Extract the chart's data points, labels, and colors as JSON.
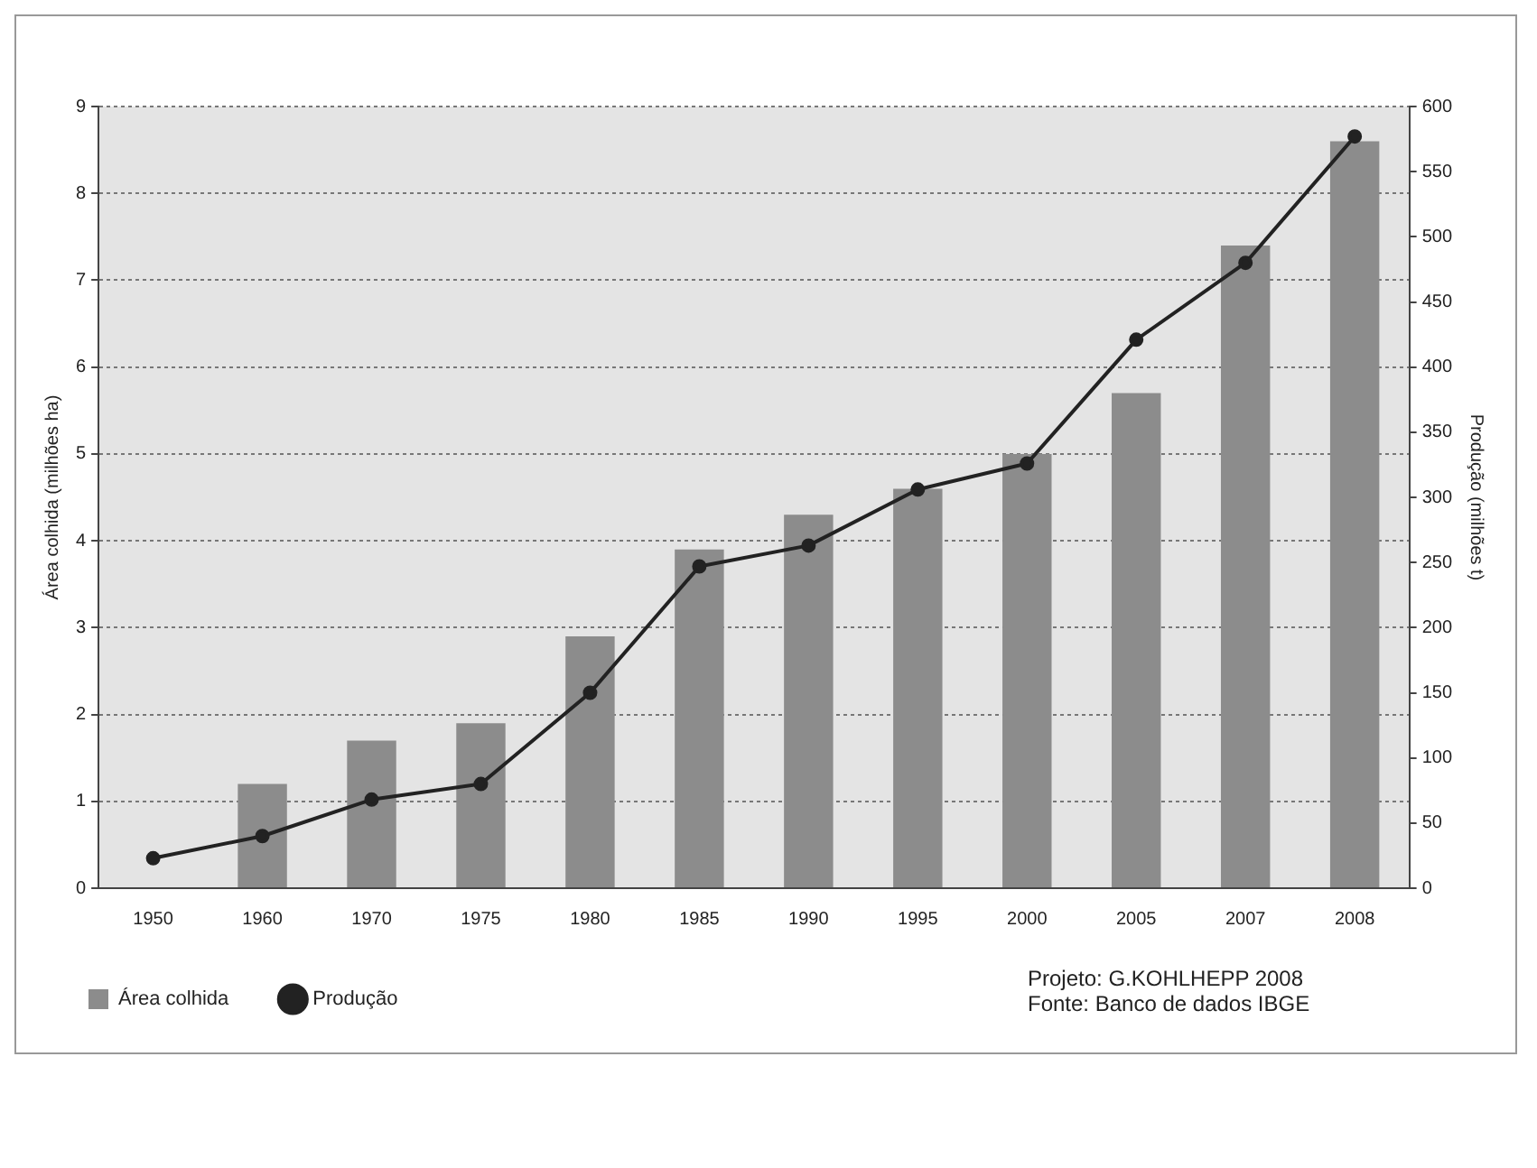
{
  "chart_data": {
    "type": "bar",
    "ylabel": "Área colhida (milhões ha)",
    "y2label": "Produção (milhões t)",
    "categories": [
      "1950",
      "1960",
      "1970",
      "1975",
      "1980",
      "1985",
      "1990",
      "1995",
      "2000",
      "2005",
      "2007",
      "2008"
    ],
    "series": [
      {
        "name": "Área colhida",
        "color": "#8c8c8c",
        "values": [
          null,
          1.2,
          1.7,
          1.9,
          2.9,
          3.9,
          4.3,
          4.6,
          5.0,
          5.7,
          7.4,
          8.6
        ]
      },
      {
        "name": "Produção",
        "type": "line",
        "axis": "y2",
        "color": "#222222",
        "marker": "circle",
        "values": [
          23,
          40,
          68,
          80,
          150,
          247,
          263,
          306,
          326,
          421,
          480,
          577
        ]
      }
    ],
    "ylim": [
      0,
      9
    ],
    "yticks": [
      0,
      1,
      2,
      3,
      4,
      5,
      6,
      7,
      8,
      9
    ],
    "y2lim": [
      0,
      600
    ],
    "y2ticks": [
      0,
      50,
      100,
      150,
      200,
      250,
      300,
      350,
      400,
      450,
      500,
      550,
      600
    ],
    "grid": "y",
    "legend": "bottom left",
    "annotations": [
      "Projeto: G.KOHLHEPP 2008",
      "Fonte: Banco de dados IBGE"
    ]
  }
}
